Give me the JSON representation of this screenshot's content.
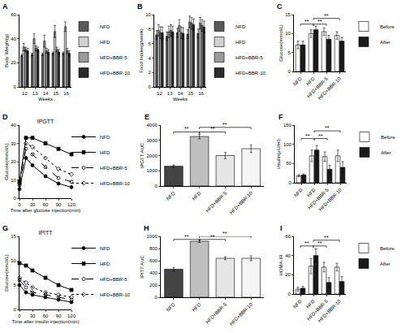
{
  "chart_data": [
    {
      "panel": "A",
      "type": "bar",
      "x_label": "Weeks",
      "y_label": "Body Weight(g)",
      "categories": [
        "12",
        "13",
        "14",
        "15",
        "16"
      ],
      "series": [
        {
          "name": "NFD",
          "color": "#5a5a5a",
          "values": [
            26,
            27,
            27,
            28,
            28
          ],
          "errors": [
            1,
            1,
            1,
            1,
            1
          ]
        },
        {
          "name": "HFD",
          "color": "#d0d0d0",
          "values": [
            33,
            40,
            38,
            46,
            50
          ],
          "errors": [
            3,
            4,
            5,
            5,
            4
          ]
        },
        {
          "name": "HFD+BBR-5",
          "color": "#9a9a9a",
          "values": [
            31,
            32,
            30,
            31,
            30
          ],
          "errors": [
            2,
            2,
            2,
            2,
            2
          ]
        },
        {
          "name": "HFD+BBR-10",
          "color": "#2b2b2b",
          "values": [
            30,
            31,
            29,
            29,
            28
          ],
          "errors": [
            2,
            2,
            2,
            2,
            2
          ]
        }
      ],
      "ylim": [
        0,
        60
      ],
      "yticks": [
        0,
        20,
        40,
        60
      ],
      "legend": "right"
    },
    {
      "panel": "B",
      "type": "bar",
      "x_label": "Weeks",
      "y_label": "Food Intake(g/week)",
      "categories": [
        "12",
        "13",
        "14",
        "15",
        "16"
      ],
      "series": [
        {
          "name": "NFD",
          "color": "#5a5a5a",
          "values": [
            7.2,
            7.0,
            7.5,
            7.3,
            7.4
          ],
          "errors": [
            0.6,
            0.6,
            0.6,
            0.6,
            0.6
          ]
        },
        {
          "name": "HFD",
          "color": "#d0d0d0",
          "values": [
            7.8,
            7.6,
            8.5,
            9.0,
            8.8
          ],
          "errors": [
            0.8,
            0.8,
            0.8,
            0.8,
            0.8
          ]
        },
        {
          "name": "HFD+BBR-5",
          "color": "#9a9a9a",
          "values": [
            7.5,
            7.8,
            7.5,
            8.8,
            8.5
          ],
          "errors": [
            0.8,
            0.8,
            0.8,
            0.8,
            0.8
          ]
        },
        {
          "name": "HFD+BBR-10",
          "color": "#2b2b2b",
          "values": [
            7.5,
            7.6,
            7.4,
            8.6,
            8.3
          ],
          "errors": [
            0.8,
            0.8,
            0.8,
            0.8,
            0.8
          ]
        }
      ],
      "ylim": [
        0,
        10
      ],
      "yticks": [
        0,
        2,
        4,
        6,
        8,
        10
      ],
      "legend": "right"
    },
    {
      "panel": "C",
      "type": "bar",
      "y_label": "Glucose(mmol/L)",
      "categories": [
        "NFD",
        "HFD",
        "HFD+BBR-5",
        "HFD+BBR-10"
      ],
      "series": [
        {
          "name": "Before",
          "color": "#ffffff",
          "values": [
            7,
            10,
            10.5,
            9.5
          ],
          "errors": [
            1,
            1,
            1,
            1
          ]
        },
        {
          "name": "After",
          "color": "#1a1a1a",
          "values": [
            7,
            11,
            8.5,
            8
          ],
          "errors": [
            1,
            1,
            1,
            1
          ]
        }
      ],
      "ylim": [
        0,
        15
      ],
      "yticks": [
        0,
        5,
        10,
        15
      ],
      "legend": "right",
      "significance": [
        {
          "from": "NFD",
          "to": "HFD",
          "y": 12.5,
          "label": "**"
        },
        {
          "from": "HFD",
          "to": "HFD+BBR-5",
          "y": 12.5,
          "label": "**"
        },
        {
          "from": "HFD",
          "to": "HFD+BBR-10",
          "y": 14,
          "label": "**"
        }
      ]
    },
    {
      "panel": "D",
      "type": "line",
      "title": "IPGTT",
      "x_label": "Time after glucose injection(min)",
      "y_label": "Glucose(mmol/L)",
      "x": [
        0,
        15,
        30,
        60,
        90,
        120
      ],
      "series": [
        {
          "name": "NFD",
          "color": "#000000",
          "marker": "circle",
          "line_style": "solid",
          "values": [
            5,
            22,
            18,
            12,
            8,
            6
          ]
        },
        {
          "name": "HFD",
          "color": "#000000",
          "marker": "square",
          "line_style": "solid",
          "values": [
            9,
            33,
            33,
            30,
            27,
            24
          ]
        },
        {
          "name": "HFD+BBR-5",
          "color": "#000000",
          "marker": "circle-open",
          "line_style": "dash",
          "values": [
            7,
            27,
            24,
            17,
            11,
            9
          ]
        },
        {
          "name": "HFD+BBR-10",
          "color": "#000000",
          "marker": "diamond-open",
          "line_style": "dot",
          "values": [
            8,
            30,
            28,
            22,
            16,
            13
          ]
        }
      ],
      "xlim": [
        0,
        120
      ],
      "xticks": [
        0,
        30,
        60,
        90,
        120
      ],
      "ylim": [
        0,
        40
      ],
      "yticks": [
        0,
        10,
        20,
        30,
        40
      ],
      "legend": "right"
    },
    {
      "panel": "E",
      "type": "bar",
      "y_label": "IPGTT AUC",
      "categories": [
        "NFD",
        "HFD",
        "HFD+BBR-5",
        "HFD+BBR-10"
      ],
      "values": [
        1300,
        3250,
        2000,
        2450
      ],
      "errors": [
        80,
        150,
        200,
        250
      ],
      "colors": [
        "#444444",
        "#bfbfbf",
        "#e6e6e6",
        "#f5f5f5"
      ],
      "ylim": [
        0,
        4000
      ],
      "yticks": [
        0,
        1000,
        2000,
        3000,
        4000
      ],
      "significance": [
        {
          "from": "NFD",
          "to": "HFD",
          "y": 3550,
          "label": "**"
        },
        {
          "from": "HFD",
          "to": "HFD+BBR-5",
          "y": 3550,
          "label": "**"
        },
        {
          "from": "HFD",
          "to": "HFD+BBR-10",
          "y": 3850,
          "label": "**"
        }
      ]
    },
    {
      "panel": "F",
      "type": "bar",
      "y_label": "insulin(μU/ml)",
      "categories": [
        "NFD",
        "HFD",
        "HFD+BBR-5",
        "HFD+BBR-10"
      ],
      "series": [
        {
          "name": "Before",
          "color": "#ffffff",
          "values": [
            18,
            70,
            68,
            70
          ],
          "errors": [
            3,
            15,
            12,
            15
          ]
        },
        {
          "name": "After",
          "color": "#1a1a1a",
          "values": [
            20,
            85,
            35,
            40
          ],
          "errors": [
            3,
            12,
            10,
            15
          ]
        }
      ],
      "ylim": [
        0,
        150
      ],
      "yticks": [
        0,
        50,
        100,
        150
      ],
      "legend": "right",
      "significance": [
        {
          "from": "NFD",
          "to": "HFD",
          "y": 115,
          "label": "**"
        },
        {
          "from": "HFD",
          "to": "HFD+BBR-5",
          "y": 115,
          "label": "**"
        },
        {
          "from": "HFD",
          "to": "HFD+BBR-10",
          "y": 135,
          "label": "**"
        }
      ]
    },
    {
      "panel": "G",
      "type": "line",
      "title": "IPITT",
      "x_label": "Time after insulin injection(min)",
      "y_label": "Glucose(mmol/L)",
      "x": [
        0,
        15,
        30,
        60,
        90,
        120
      ],
      "series": [
        {
          "name": "NFD",
          "color": "#000000",
          "marker": "circle",
          "line_style": "solid",
          "values": [
            5,
            3.5,
            3,
            2.5,
            2,
            1.5
          ]
        },
        {
          "name": "HFD",
          "color": "#000000",
          "marker": "square",
          "line_style": "solid",
          "values": [
            9.5,
            9,
            8,
            6.5,
            5,
            4
          ]
        },
        {
          "name": "HFD+BBR-5",
          "color": "#000000",
          "marker": "circle-open",
          "line_style": "dash",
          "values": [
            6,
            4.5,
            3.5,
            3,
            2.5,
            2
          ]
        },
        {
          "name": "HFD+BBR-10",
          "color": "#000000",
          "marker": "diamond-open",
          "line_style": "dot",
          "values": [
            6.5,
            5.5,
            4.5,
            3.5,
            3,
            2.5
          ]
        }
      ],
      "xlim": [
        0,
        120
      ],
      "xticks": [
        0,
        30,
        60,
        90,
        120
      ],
      "ylim": [
        0,
        15
      ],
      "yticks": [
        0,
        5,
        10,
        15
      ],
      "legend": "right"
    },
    {
      "panel": "H",
      "type": "bar",
      "y_label": "IPITT AUC",
      "categories": [
        "NFD",
        "HFD",
        "HFD+BBR-5",
        "HFD+BBR-10"
      ],
      "values": [
        460,
        920,
        640,
        640
      ],
      "errors": [
        30,
        20,
        25,
        40
      ],
      "colors": [
        "#444444",
        "#bfbfbf",
        "#e6e6e6",
        "#f5f5f5"
      ],
      "ylim": [
        0,
        1000
      ],
      "yticks": [
        0,
        200,
        400,
        600,
        800,
        1000
      ],
      "significance": [
        {
          "from": "NFD",
          "to": "HFD",
          "y": 950,
          "label": "**"
        },
        {
          "from": "HFD",
          "to": "HFD+BBR-5",
          "y": 950,
          "label": "**"
        },
        {
          "from": "HFD",
          "to": "HFD+BBR-10",
          "y": 1000,
          "label": "**"
        }
      ]
    },
    {
      "panel": "I",
      "type": "bar",
      "y_label": "HOMA-IR",
      "categories": [
        "NFD",
        "HFD",
        "HFD+BBR-5",
        "HFD+BBR-10"
      ],
      "series": [
        {
          "name": "Before",
          "color": "#ffffff",
          "values": [
            5,
            29,
            28,
            28
          ],
          "errors": [
            2,
            8,
            5,
            4
          ]
        },
        {
          "name": "After",
          "color": "#1a1a1a",
          "values": [
            6,
            40,
            12,
            13
          ],
          "errors": [
            2,
            7,
            5,
            5
          ]
        }
      ],
      "ylim": [
        0,
        60
      ],
      "yticks": [
        0,
        20,
        40,
        60
      ],
      "legend": "right",
      "significance": [
        {
          "from": "NFD",
          "to": "HFD",
          "y": 50,
          "label": "**"
        },
        {
          "from": "HFD",
          "to": "HFD+BBR-5",
          "y": 50,
          "label": "**"
        },
        {
          "from": "HFD",
          "to": "HFD+BBR-10",
          "y": 56,
          "label": "**"
        }
      ]
    }
  ]
}
